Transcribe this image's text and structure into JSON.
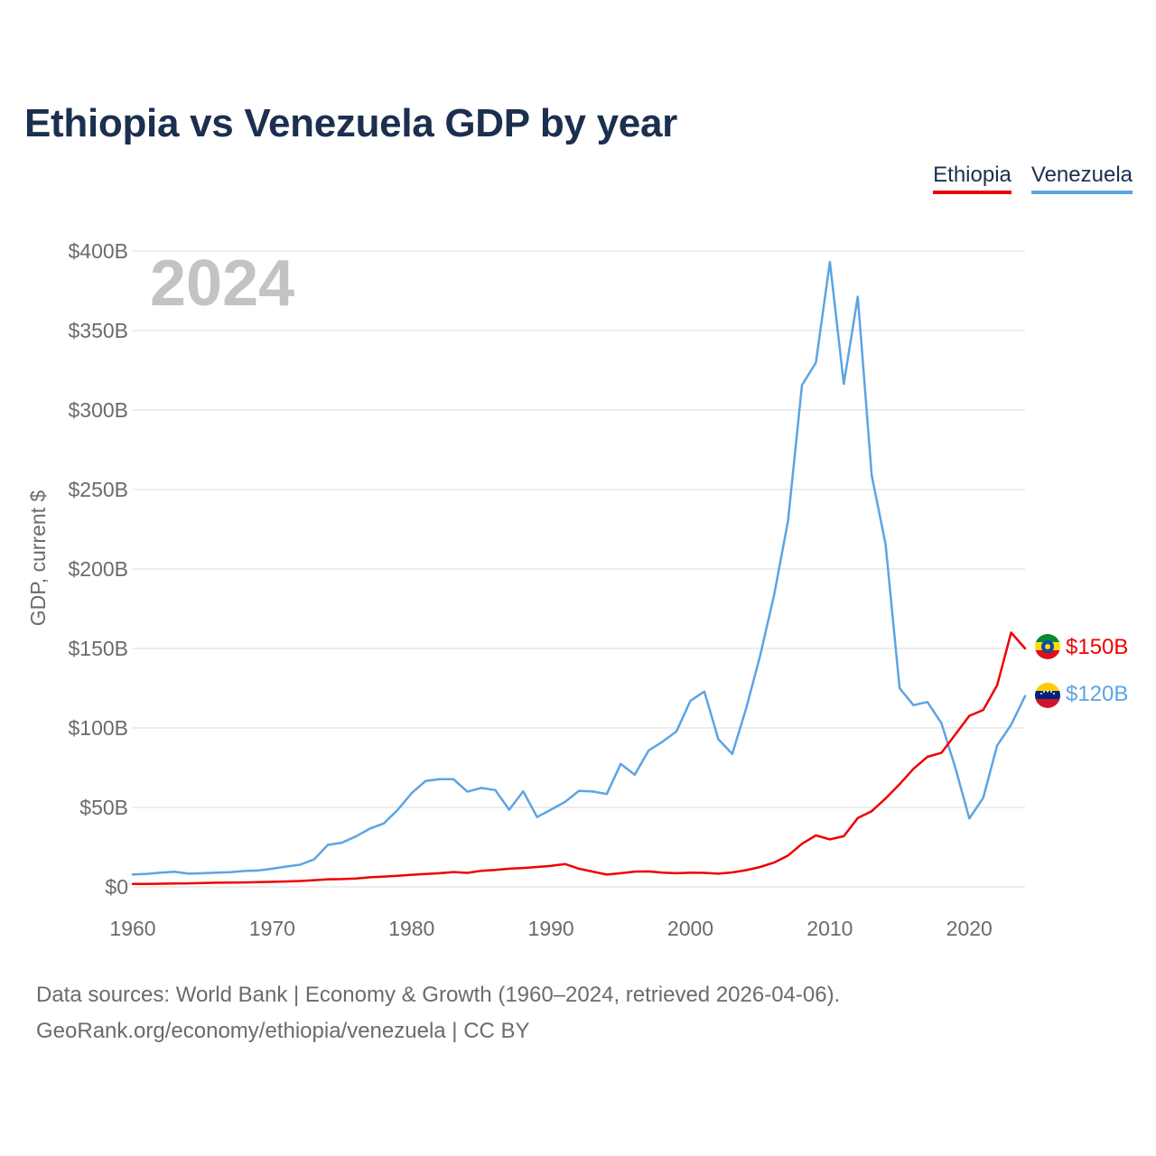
{
  "title": "Ethiopia vs Venezuela GDP by year",
  "legend": [
    {
      "name": "Ethiopia",
      "color": "#ee0000"
    },
    {
      "name": "Venezuela",
      "color": "#5ca4e4"
    }
  ],
  "year_watermark": "2024",
  "source_lines": [
    "Data sources: World Bank | Economy & Growth (1960–2024, retrieved 2026-04-06).",
    "GeoRank.org/economy/ethiopia/venezuela | CC BY"
  ],
  "chart_data": {
    "type": "line",
    "title": "Ethiopia vs Venezuela GDP by year",
    "xlabel": "",
    "ylabel": "GDP, current $",
    "xlim": [
      1960,
      2024
    ],
    "ylim": [
      0,
      400
    ],
    "y_unit": "billion US$",
    "x_ticks": [
      1960,
      1970,
      1980,
      1990,
      2000,
      2010,
      2020
    ],
    "y_ticks": [
      0,
      50,
      100,
      150,
      200,
      250,
      300,
      350,
      400
    ],
    "y_tick_labels": [
      "$0",
      "$50B",
      "$100B",
      "$150B",
      "$200B",
      "$250B",
      "$300B",
      "$350B",
      "$400B"
    ],
    "grid": true,
    "legend_position": "top-right",
    "x": [
      1960,
      1961,
      1962,
      1963,
      1964,
      1965,
      1966,
      1967,
      1968,
      1969,
      1970,
      1971,
      1972,
      1973,
      1974,
      1975,
      1976,
      1977,
      1978,
      1979,
      1980,
      1981,
      1982,
      1983,
      1984,
      1985,
      1986,
      1987,
      1988,
      1989,
      1990,
      1991,
      1992,
      1993,
      1994,
      1995,
      1996,
      1997,
      1998,
      1999,
      2000,
      2001,
      2002,
      2003,
      2004,
      2005,
      2006,
      2007,
      2008,
      2009,
      2010,
      2011,
      2012,
      2013,
      2014,
      2015,
      2016,
      2017,
      2018,
      2019,
      2020,
      2021,
      2022,
      2023,
      2024
    ],
    "series": [
      {
        "name": "Ethiopia",
        "color": "#ee0000",
        "end_label": "$150B",
        "values": [
          1.8,
          1.9,
          2.0,
          2.1,
          2.2,
          2.4,
          2.6,
          2.7,
          2.8,
          3.0,
          3.2,
          3.4,
          3.7,
          4.2,
          4.8,
          4.9,
          5.3,
          6.0,
          6.5,
          7.0,
          7.6,
          8.1,
          8.6,
          9.3,
          8.8,
          10.1,
          10.6,
          11.4,
          11.9,
          12.5,
          13.2,
          14.4,
          11.4,
          9.6,
          7.7,
          8.6,
          9.6,
          9.7,
          8.9,
          8.6,
          8.9,
          8.8,
          8.3,
          9.1,
          10.5,
          12.5,
          15.3,
          19.7,
          27.1,
          32.4,
          29.9,
          31.9,
          43.3,
          47.6,
          55.6,
          64.6,
          74.3,
          81.8,
          84.3,
          95.9,
          107.6,
          111.3,
          126.8,
          160.0,
          150.0
        ]
      },
      {
        "name": "Venezuela",
        "color": "#5ca4e4",
        "end_label": "$120B",
        "values": [
          7.8,
          8.2,
          8.9,
          9.5,
          8.3,
          8.6,
          8.9,
          9.2,
          10.0,
          10.3,
          11.4,
          12.8,
          13.9,
          17.3,
          26.4,
          27.8,
          31.7,
          36.6,
          39.9,
          48.4,
          59.0,
          66.6,
          67.8,
          67.7,
          59.9,
          62.2,
          60.9,
          48.5,
          60.1,
          43.9,
          48.6,
          53.4,
          60.4,
          60.0,
          58.4,
          77.4,
          70.5,
          85.8,
          91.3,
          97.9,
          117.1,
          122.9,
          92.9,
          83.6,
          112.5,
          145.5,
          183.5,
          230.4,
          315.6,
          329.8,
          393.2,
          316.5,
          371.3,
          258.9,
          215.4,
          125.0,
          114.3,
          116.3,
          103.0,
          75.0,
          43.0,
          56.0,
          89.0,
          102.0,
          120.0
        ]
      }
    ]
  }
}
